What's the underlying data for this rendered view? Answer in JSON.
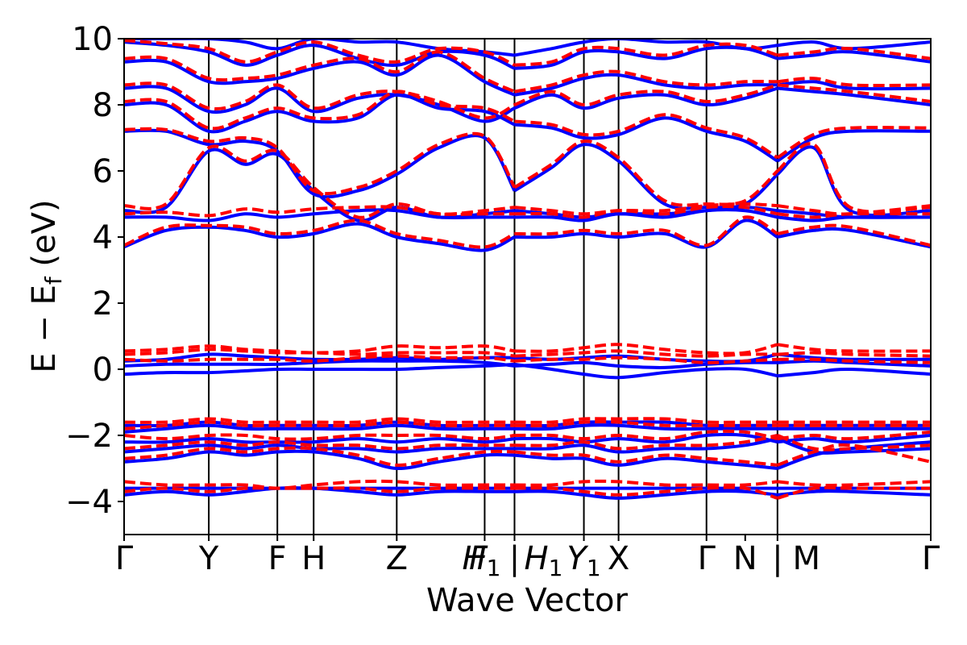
{
  "chart_data": {
    "type": "line",
    "xlabel": "Wave Vector",
    "ylabel": "E − E_f (eV)",
    "ylabel_parts": {
      "main": "E − E",
      "sub": "f",
      "unit": " (eV)"
    },
    "ylim": [
      -5,
      10
    ],
    "x_range": [
      0,
      1
    ],
    "yticks": [
      {
        "value": -4,
        "label": "−4"
      },
      {
        "value": -2,
        "label": "−2"
      },
      {
        "value": 0,
        "label": "0"
      },
      {
        "value": 2,
        "label": "2"
      },
      {
        "value": 4,
        "label": "4"
      },
      {
        "value": 6,
        "label": "6"
      },
      {
        "value": 8,
        "label": "8"
      },
      {
        "value": 10,
        "label": "10"
      }
    ],
    "kpoints": [
      {
        "x": 0.0,
        "label": "Γ"
      },
      {
        "x": 0.105,
        "label": "Y"
      },
      {
        "x": 0.19,
        "label": "F"
      },
      {
        "x": 0.235,
        "label": "H"
      },
      {
        "x": 0.338,
        "label": "Z"
      },
      {
        "x": 0.447,
        "label": "F"
      },
      {
        "x": 0.447,
        "label": "H",
        "sub": "1"
      },
      {
        "x": 0.484,
        "label": "|"
      },
      {
        "x": 0.484,
        "label": "H",
        "sub": "1"
      },
      {
        "x": 0.57,
        "label": "Y",
        "sub": "1"
      },
      {
        "x": 0.613,
        "label": "X"
      },
      {
        "x": 0.722,
        "label": "Γ"
      },
      {
        "x": 0.77,
        "label": "N"
      },
      {
        "x": 0.81,
        "label": "|"
      },
      {
        "x": 0.81,
        "label": "M"
      },
      {
        "x": 1.0,
        "label": "Γ"
      }
    ],
    "vlines": [
      0.105,
      0.19,
      0.235,
      0.338,
      0.447,
      0.484,
      0.57,
      0.613,
      0.722,
      0.81
    ],
    "segment_breaks": [
      0.484,
      0.81
    ],
    "x": [
      0.0,
      0.052,
      0.105,
      0.15,
      0.19,
      0.235,
      0.29,
      0.338,
      0.39,
      0.447,
      0.484,
      0.53,
      0.57,
      0.613,
      0.67,
      0.722,
      0.77,
      0.81,
      0.855,
      0.9,
      1.0
    ],
    "series": [
      {
        "color": "#0000ff",
        "style": "solid",
        "bands": [
          [
            -3.8,
            -3.7,
            -3.8,
            -3.7,
            -3.6,
            -3.6,
            -3.7,
            -3.8,
            -3.7,
            -3.7,
            -3.7,
            -3.7,
            -3.8,
            -3.9,
            -3.8,
            -3.7,
            -3.7,
            -3.8,
            -3.7,
            -3.7,
            -3.8
          ],
          [
            -3.6,
            -3.6,
            -3.6,
            -3.6,
            -3.6,
            -3.6,
            -3.6,
            -3.6,
            -3.6,
            -3.6,
            -3.6,
            -3.6,
            -3.6,
            -3.6,
            -3.6,
            -3.6,
            -3.6,
            -3.6,
            -3.6,
            -3.6,
            -3.6
          ],
          [
            -2.8,
            -2.7,
            -2.5,
            -2.6,
            -2.5,
            -2.5,
            -2.7,
            -3.0,
            -2.8,
            -2.6,
            -2.6,
            -2.7,
            -2.7,
            -2.9,
            -2.7,
            -2.8,
            -2.9,
            -3.0,
            -2.6,
            -2.4,
            -2.2
          ],
          [
            -2.5,
            -2.4,
            -2.3,
            -2.4,
            -2.3,
            -2.4,
            -2.4,
            -2.5,
            -2.4,
            -2.4,
            -2.4,
            -2.4,
            -2.3,
            -2.5,
            -2.4,
            -2.4,
            -2.3,
            -2.1,
            -2.5,
            -2.5,
            -2.4
          ],
          [
            -2.2,
            -2.2,
            -2.1,
            -2.2,
            -2.2,
            -2.2,
            -2.1,
            -2.2,
            -2.1,
            -2.2,
            -2.1,
            -2.1,
            -2.2,
            -2.1,
            -2.2,
            -2.0,
            -2.0,
            -2.2,
            -2.1,
            -2.2,
            -2.0
          ],
          [
            -1.9,
            -1.8,
            -1.7,
            -1.8,
            -1.8,
            -1.8,
            -1.8,
            -1.7,
            -1.8,
            -1.8,
            -1.8,
            -1.8,
            -1.7,
            -1.7,
            -1.8,
            -1.8,
            -1.8,
            -1.8,
            -1.8,
            -1.8,
            -1.8
          ],
          [
            -1.7,
            -1.7,
            -1.6,
            -1.7,
            -1.7,
            -1.7,
            -1.7,
            -1.6,
            -1.7,
            -1.7,
            -1.7,
            -1.7,
            -1.6,
            -1.6,
            -1.6,
            -1.7,
            -1.7,
            -1.7,
            -1.7,
            -1.7,
            -1.7
          ],
          [
            -0.15,
            -0.1,
            -0.1,
            -0.05,
            0.0,
            0.0,
            0.0,
            0.0,
            0.05,
            0.1,
            0.15,
            0.0,
            -0.15,
            -0.25,
            -0.1,
            0.0,
            0.0,
            -0.2,
            -0.1,
            0.0,
            -0.15
          ],
          [
            0.1,
            0.15,
            0.15,
            0.15,
            0.15,
            0.2,
            0.25,
            0.25,
            0.25,
            0.2,
            0.1,
            0.15,
            0.2,
            0.1,
            0.05,
            0.15,
            0.2,
            0.2,
            0.25,
            0.2,
            0.1
          ],
          [
            0.25,
            0.3,
            0.45,
            0.4,
            0.35,
            0.3,
            0.3,
            0.35,
            0.3,
            0.35,
            0.35,
            0.3,
            0.35,
            0.4,
            0.3,
            0.25,
            0.25,
            0.45,
            0.35,
            0.3,
            0.3
          ],
          [
            3.7,
            4.2,
            4.3,
            4.2,
            4.0,
            4.1,
            4.4,
            4.0,
            3.8,
            3.6,
            4.0,
            4.0,
            4.1,
            4.0,
            4.1,
            3.7,
            4.5,
            4.0,
            4.2,
            4.2,
            3.7
          ],
          [
            4.6,
            4.6,
            4.5,
            4.7,
            4.6,
            4.7,
            4.8,
            4.8,
            4.6,
            4.6,
            4.6,
            4.6,
            4.5,
            4.7,
            4.6,
            4.8,
            4.8,
            4.6,
            4.5,
            4.6,
            4.6
          ],
          [
            4.8,
            4.9,
            6.6,
            6.2,
            6.5,
            5.4,
            4.5,
            4.9,
            4.6,
            4.7,
            4.8,
            4.7,
            4.6,
            4.7,
            4.7,
            4.8,
            4.9,
            4.8,
            4.7,
            4.6,
            4.6
          ],
          [
            7.2,
            7.2,
            6.8,
            6.9,
            6.6,
            5.3,
            5.4,
            5.9,
            6.7,
            7.0,
            5.4,
            6.1,
            6.8,
            6.3,
            5.0,
            4.9,
            5.0,
            5.9,
            6.7,
            4.8,
            4.8
          ],
          [
            8.0,
            8.0,
            7.2,
            7.5,
            7.8,
            7.5,
            7.6,
            8.3,
            7.9,
            7.8,
            7.4,
            7.3,
            7.0,
            7.1,
            7.6,
            7.2,
            6.9,
            6.3,
            7.0,
            7.2,
            7.2
          ],
          [
            8.5,
            8.5,
            7.8,
            8.0,
            8.5,
            7.8,
            8.2,
            8.3,
            8.0,
            7.5,
            7.9,
            8.3,
            7.9,
            8.2,
            8.3,
            8.0,
            8.2,
            8.5,
            8.4,
            8.3,
            8.0
          ],
          [
            9.3,
            9.3,
            8.7,
            8.7,
            8.8,
            9.1,
            9.3,
            8.9,
            9.5,
            8.7,
            8.3,
            8.5,
            8.8,
            8.9,
            8.6,
            8.5,
            8.6,
            8.6,
            8.7,
            8.5,
            8.5
          ],
          [
            9.9,
            9.8,
            9.6,
            9.2,
            9.5,
            9.8,
            9.4,
            9.2,
            9.6,
            9.5,
            9.1,
            9.2,
            9.6,
            9.6,
            9.4,
            9.7,
            9.7,
            9.4,
            9.5,
            9.6,
            9.3
          ],
          [
            10.0,
            10.0,
            10.0,
            9.9,
            9.7,
            10.0,
            9.9,
            9.9,
            9.7,
            9.6,
            9.5,
            9.7,
            9.9,
            10.0,
            9.9,
            9.9,
            9.7,
            9.8,
            9.9,
            9.7,
            9.9
          ]
        ]
      },
      {
        "color": "#ff0000",
        "style": "dashed",
        "bands": [
          [
            -3.7,
            -3.6,
            -3.7,
            -3.6,
            -3.6,
            -3.6,
            -3.6,
            -3.7,
            -3.6,
            -3.6,
            -3.6,
            -3.6,
            -3.7,
            -3.8,
            -3.7,
            -3.6,
            -3.6,
            -3.9,
            -3.6,
            -3.6,
            -3.6
          ],
          [
            -3.4,
            -3.5,
            -3.5,
            -3.5,
            -3.6,
            -3.5,
            -3.4,
            -3.4,
            -3.5,
            -3.5,
            -3.5,
            -3.5,
            -3.4,
            -3.4,
            -3.5,
            -3.5,
            -3.5,
            -3.4,
            -3.5,
            -3.5,
            -3.4
          ],
          [
            -2.7,
            -2.6,
            -2.4,
            -2.5,
            -2.4,
            -2.4,
            -2.6,
            -2.9,
            -2.7,
            -2.5,
            -2.5,
            -2.6,
            -2.6,
            -2.8,
            -2.6,
            -2.7,
            -2.8,
            -2.9,
            -2.5,
            -2.3,
            -2.8
          ],
          [
            -2.4,
            -2.3,
            -2.2,
            -2.3,
            -2.2,
            -2.3,
            -2.3,
            -2.4,
            -2.3,
            -2.3,
            -2.3,
            -2.3,
            -2.2,
            -2.4,
            -2.3,
            -2.3,
            -2.2,
            -2.0,
            -2.4,
            -2.4,
            -2.3
          ],
          [
            -2.0,
            -2.1,
            -2.0,
            -2.0,
            -2.1,
            -2.1,
            -2.0,
            -2.0,
            -2.0,
            -2.1,
            -2.0,
            -2.0,
            -2.1,
            -2.0,
            -2.1,
            -1.9,
            -1.9,
            -2.1,
            -2.0,
            -2.1,
            -1.9
          ],
          [
            -1.8,
            -1.7,
            -1.6,
            -1.7,
            -1.7,
            -1.7,
            -1.7,
            -1.6,
            -1.7,
            -1.7,
            -1.7,
            -1.7,
            -1.6,
            -1.6,
            -1.7,
            -1.7,
            -1.7,
            -1.7,
            -1.7,
            -1.7,
            -1.7
          ],
          [
            -1.6,
            -1.6,
            -1.5,
            -1.6,
            -1.6,
            -1.6,
            -1.6,
            -1.5,
            -1.6,
            -1.6,
            -1.6,
            -1.6,
            -1.5,
            -1.5,
            -1.5,
            -1.6,
            -1.6,
            -1.6,
            -1.6,
            -1.6,
            -1.6
          ],
          [
            0.3,
            0.25,
            0.3,
            0.3,
            0.3,
            0.25,
            0.35,
            0.4,
            0.35,
            0.35,
            0.25,
            0.3,
            0.3,
            0.35,
            0.3,
            0.2,
            0.25,
            0.3,
            0.3,
            0.25,
            0.2
          ],
          [
            0.45,
            0.5,
            0.6,
            0.55,
            0.5,
            0.5,
            0.45,
            0.5,
            0.5,
            0.5,
            0.4,
            0.45,
            0.5,
            0.55,
            0.45,
            0.4,
            0.45,
            0.45,
            0.5,
            0.45,
            0.4
          ],
          [
            0.55,
            0.6,
            0.7,
            0.6,
            0.55,
            0.5,
            0.55,
            0.7,
            0.65,
            0.7,
            0.55,
            0.55,
            0.65,
            0.75,
            0.6,
            0.5,
            0.5,
            0.75,
            0.6,
            0.55,
            0.55
          ],
          [
            3.75,
            4.3,
            4.35,
            4.3,
            4.1,
            4.2,
            4.5,
            4.1,
            3.9,
            3.7,
            4.1,
            4.1,
            4.2,
            4.1,
            4.2,
            3.75,
            4.6,
            4.1,
            4.3,
            4.3,
            3.75
          ],
          [
            4.7,
            4.75,
            4.65,
            4.85,
            4.75,
            4.85,
            4.9,
            4.9,
            4.7,
            4.7,
            4.7,
            4.7,
            4.6,
            4.8,
            4.7,
            4.9,
            4.9,
            4.7,
            4.6,
            4.7,
            4.7
          ],
          [
            4.95,
            5.0,
            6.7,
            6.3,
            6.6,
            5.5,
            4.6,
            5.0,
            4.7,
            4.8,
            4.9,
            4.8,
            4.7,
            4.8,
            4.8,
            4.95,
            5.0,
            4.95,
            4.8,
            4.7,
            4.95
          ],
          [
            7.25,
            7.25,
            6.9,
            7.0,
            6.7,
            5.4,
            5.5,
            6.0,
            6.8,
            7.05,
            5.5,
            6.2,
            6.9,
            6.4,
            5.1,
            5.0,
            5.1,
            6.0,
            6.8,
            4.9,
            4.9
          ],
          [
            8.1,
            8.1,
            7.3,
            7.6,
            7.9,
            7.6,
            7.7,
            8.4,
            8.0,
            7.9,
            7.5,
            7.4,
            7.1,
            7.2,
            7.7,
            7.3,
            7.0,
            6.4,
            7.1,
            7.3,
            7.3
          ],
          [
            8.6,
            8.6,
            7.9,
            8.1,
            8.6,
            7.9,
            8.3,
            8.4,
            8.1,
            7.6,
            8.0,
            8.4,
            8.0,
            8.3,
            8.4,
            8.1,
            8.3,
            8.6,
            8.5,
            8.4,
            8.1
          ],
          [
            9.4,
            9.4,
            8.8,
            8.8,
            8.9,
            9.2,
            9.4,
            9.0,
            9.6,
            8.8,
            8.4,
            8.6,
            8.9,
            9.0,
            8.7,
            8.6,
            8.7,
            8.7,
            8.8,
            8.6,
            8.6
          ],
          [
            9.95,
            9.85,
            9.7,
            9.3,
            9.6,
            9.9,
            9.5,
            9.3,
            9.7,
            9.6,
            9.2,
            9.3,
            9.7,
            9.7,
            9.5,
            9.8,
            9.8,
            9.5,
            9.6,
            9.7,
            9.4
          ]
        ]
      }
    ]
  }
}
